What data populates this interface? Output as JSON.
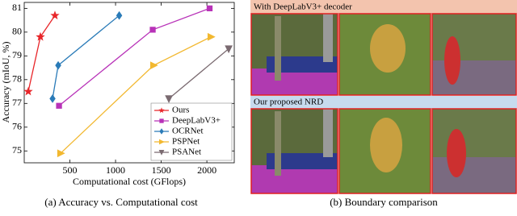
{
  "chart_data": {
    "type": "line",
    "xlabel": "Computational cost (GFlops)",
    "ylabel": "Accuracy (mIoU, %)",
    "xlim": [
      0,
      2300
    ],
    "ylim": [
      74.5,
      81.25
    ],
    "xticks": [
      500,
      1000,
      1500,
      2000
    ],
    "yticks": [
      75,
      76,
      77,
      78,
      79,
      80,
      81
    ],
    "legend": "lower right",
    "series": [
      {
        "name": "Ours",
        "color": "#e8262a",
        "marker": "star",
        "x": [
          44,
          177,
          336
        ],
        "values": [
          77.5,
          79.8,
          80.7
        ]
      },
      {
        "name": "DeepLabV3+",
        "color": "#b832b8",
        "marker": "square",
        "x": [
          381,
          1407,
          2030
        ],
        "values": [
          76.9,
          80.1,
          81.0
        ]
      },
      {
        "name": "OCRNet",
        "color": "#2a7bb8",
        "marker": "diamond",
        "x": [
          310,
          372,
          1040
        ],
        "values": [
          77.2,
          78.6,
          80.7
        ]
      },
      {
        "name": "PSPNet",
        "color": "#f2b830",
        "marker": "triangle-right",
        "x": [
          398,
          1416,
          2044
        ],
        "values": [
          74.9,
          78.6,
          79.8
        ]
      },
      {
        "name": "PSANet",
        "color": "#7a6a70",
        "marker": "triangle-down",
        "x": [
          1584,
          2239
        ],
        "values": [
          77.2,
          79.3
        ]
      }
    ]
  },
  "captions": {
    "left": "(a) Accuracy vs. Computational cost",
    "right": "(b) Boundary comparison"
  },
  "panel": {
    "top_label": "With DeepLabV3+ decoder",
    "bottom_label": "Our proposed NRD"
  }
}
